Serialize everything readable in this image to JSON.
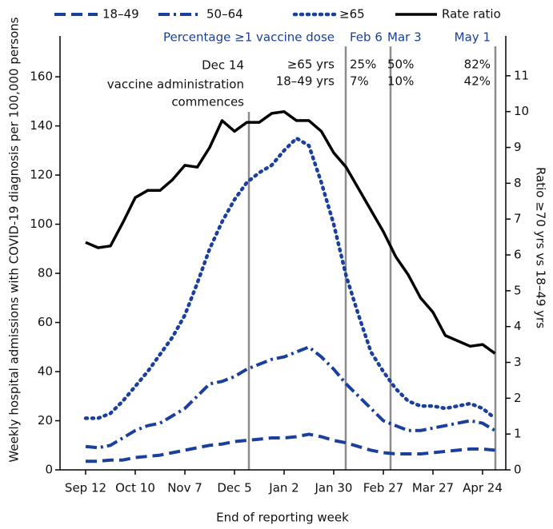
{
  "chart_data": {
    "type": "line",
    "y_label": "Weekly hospital admissions with COVID-19 diagnosis per 100,000 persons",
    "y2_label": "Ratio ≥70 yrs vs 18–49 yrs",
    "x_label": "End of reporting week",
    "categories": [
      "Sep 12",
      null,
      null,
      null,
      "Oct 10",
      null,
      null,
      null,
      "Nov 7",
      null,
      null,
      null,
      "Dec 5",
      null,
      null,
      null,
      "Jan 2",
      null,
      null,
      null,
      "Jan 30",
      null,
      null,
      null,
      "Feb 27",
      null,
      null,
      null,
      "Mar 27",
      null,
      null,
      null,
      "Apr 24",
      null
    ],
    "ylim": [
      0,
      175
    ],
    "yticks": [
      0,
      20,
      40,
      60,
      80,
      100,
      120,
      140,
      160
    ],
    "y2lim": [
      0,
      12
    ],
    "y2ticks": [
      0,
      1,
      2,
      3,
      4,
      5,
      6,
      7,
      8,
      9,
      10,
      11
    ],
    "series": [
      {
        "name": "18–49",
        "color": "#1a3f9c",
        "dash": "dashed",
        "values": [
          3.5,
          3.5,
          4,
          4,
          5,
          5.5,
          6,
          7,
          8,
          9,
          10,
          10.5,
          11.5,
          12,
          12.5,
          13,
          13,
          13.5,
          14.5,
          13.5,
          12,
          11,
          9.5,
          8,
          7,
          6.5,
          6.5,
          6.5,
          7,
          7.5,
          8,
          8.5,
          8.5,
          8
        ]
      },
      {
        "name": "50–64",
        "color": "#1a3f9c",
        "dash": "dashdot",
        "values": [
          9.5,
          9,
          10,
          13,
          16,
          18,
          19,
          22,
          25,
          30,
          35,
          36,
          38,
          41,
          43,
          45,
          46,
          48,
          50,
          46,
          41,
          35,
          30,
          25,
          20,
          18,
          16,
          16,
          17,
          18,
          19,
          20,
          19,
          16
        ]
      },
      {
        "name": "≥65",
        "color": "#1a3f9c",
        "dash": "dotted",
        "values": [
          21,
          21,
          23,
          28,
          34,
          40,
          47,
          54,
          63,
          76,
          90,
          101,
          110,
          117,
          121,
          124,
          130,
          135,
          132,
          117,
          100,
          79,
          63,
          48,
          40,
          33,
          28,
          26,
          26,
          25,
          26,
          27,
          25,
          21
        ]
      },
      {
        "name": "Rate ratio",
        "color": "#000000",
        "dash": "solid",
        "axis": "y2",
        "values": [
          6.35,
          6.2,
          6.25,
          6.9,
          7.6,
          7.8,
          7.8,
          8.1,
          8.5,
          8.45,
          9.0,
          9.75,
          9.45,
          9.7,
          9.7,
          9.95,
          10.0,
          9.75,
          9.75,
          9.45,
          8.85,
          8.45,
          7.85,
          7.25,
          6.65,
          5.95,
          5.45,
          4.8,
          4.4,
          3.75,
          3.6,
          3.45,
          3.5,
          3.25
        ]
      }
    ],
    "start_note": [
      "Dec 14",
      "vaccine administration",
      "commences"
    ],
    "vaccine_table": {
      "title": "Percentage ≥1 vaccine dose",
      "row_labels": [
        "≥65 yrs",
        "18–49 yrs"
      ],
      "dates": [
        {
          "label": "Feb 6",
          "values": [
            25,
            7
          ],
          "value_labels": [
            "25%",
            "7%"
          ]
        },
        {
          "label": "Mar 3",
          "values": [
            50,
            10
          ],
          "value_labels": [
            "50%",
            "10%"
          ]
        },
        {
          "label": "May 1",
          "values": [
            82,
            42
          ],
          "value_labels": [
            "82%",
            "42%"
          ]
        }
      ]
    }
  }
}
